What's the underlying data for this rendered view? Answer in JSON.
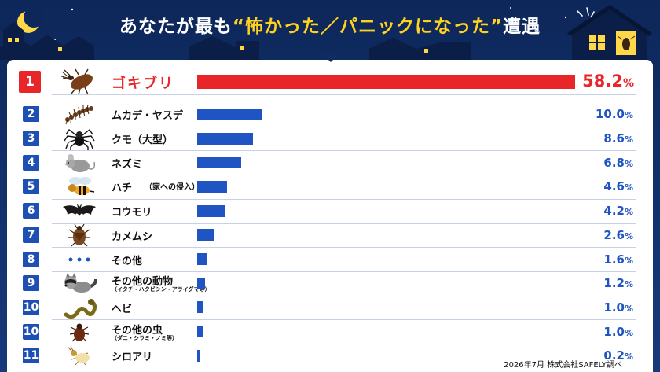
{
  "title": {
    "part1": "あなたが最も",
    "highlight": "“怖かった／パニックになった”",
    "part2": "遭遇"
  },
  "colors": {
    "background": "#0f2d63",
    "highlight": "#ffd21e",
    "top_bar": "#e8262a",
    "bar": "#1f54c2",
    "rank_badge": "#1e4fb3"
  },
  "source": "2026年7月 株式会社SAFELY調べ",
  "chart_data": {
    "type": "bar",
    "orientation": "horizontal",
    "unit": "%",
    "xlim": [
      0,
      58.2
    ],
    "items": [
      {
        "rank": "1",
        "label": "ゴキブリ",
        "sublabel": "",
        "value": 58.2,
        "value_text": "58.2",
        "icon": "cockroach-icon"
      },
      {
        "rank": "2",
        "label": "ムカデ・ヤスデ",
        "sublabel": "",
        "value": 10.0,
        "value_text": "10.0",
        "icon": "centipede-icon"
      },
      {
        "rank": "3",
        "label": "クモ（大型）",
        "sublabel": "",
        "value": 8.6,
        "value_text": "8.6",
        "icon": "spider-icon"
      },
      {
        "rank": "4",
        "label": "ネズミ",
        "sublabel": "",
        "value": 6.8,
        "value_text": "6.8",
        "icon": "mouse-icon"
      },
      {
        "rank": "5",
        "label": "ハチ",
        "sublabel": "（家への侵入）",
        "value": 4.6,
        "value_text": "4.6",
        "icon": "wasp-icon"
      },
      {
        "rank": "6",
        "label": "コウモリ",
        "sublabel": "",
        "value": 4.2,
        "value_text": "4.2",
        "icon": "bat-icon"
      },
      {
        "rank": "7",
        "label": "カメムシ",
        "sublabel": "",
        "value": 2.6,
        "value_text": "2.6",
        "icon": "stinkbug-icon"
      },
      {
        "rank": "8",
        "label": "その他",
        "sublabel": "",
        "value": 1.6,
        "value_text": "1.6",
        "icon": "dots-icon"
      },
      {
        "rank": "9",
        "label": "その他の動物",
        "sublabel": "（イタチ・ハクビシン・アライグマ等）",
        "value": 1.2,
        "value_text": "1.2",
        "icon": "raccoon-icon"
      },
      {
        "rank": "10",
        "label": "ヘビ",
        "sublabel": "",
        "value": 1.0,
        "value_text": "1.0",
        "icon": "snake-icon"
      },
      {
        "rank": "10",
        "label": "その他の虫",
        "sublabel": "（ダニ・シラミ・ノミ等）",
        "value": 1.0,
        "value_text": "1.0",
        "icon": "bug-icon"
      },
      {
        "rank": "11",
        "label": "シロアリ",
        "sublabel": "",
        "value": 0.2,
        "value_text": "0.2",
        "icon": "termite-icon"
      }
    ]
  }
}
